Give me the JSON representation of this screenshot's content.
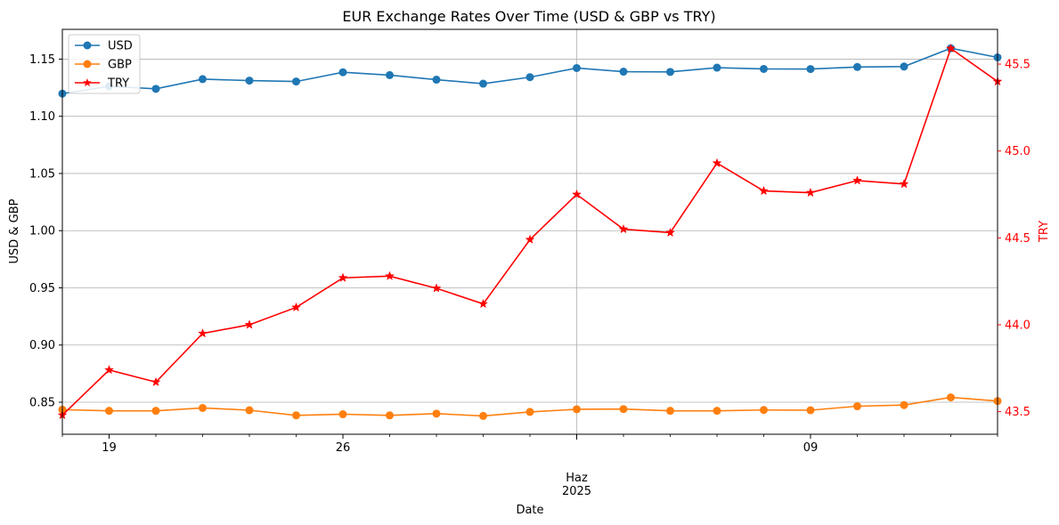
{
  "chart_data": {
    "type": "line",
    "title": "EUR Exchange Rates Over Time (USD & GBP vs TRY)",
    "xlabel": "Date",
    "ylabel": "USD & GBP",
    "y2label": "TRY",
    "x": [
      "2025-05-17",
      "2025-05-19",
      "2025-05-20",
      "2025-05-21",
      "2025-05-22",
      "2025-05-23",
      "2025-05-26",
      "2025-05-27",
      "2025-05-28",
      "2025-05-29",
      "2025-05-30",
      "2025-06-02",
      "2025-06-03",
      "2025-06-04",
      "2025-06-05",
      "2025-06-06",
      "2025-06-09",
      "2025-06-10",
      "2025-06-11",
      "2025-06-12",
      "2025-06-13"
    ],
    "x_positions_days": [
      0,
      1,
      2,
      3,
      4,
      5,
      6,
      7,
      8,
      9,
      10,
      11,
      12,
      13,
      14,
      15,
      16,
      17,
      18,
      19,
      20
    ],
    "xlim_days": [
      0,
      20
    ],
    "x_ticks": [
      {
        "day": 1,
        "label": "19"
      },
      {
        "day": 6,
        "label": "26"
      },
      {
        "day": 16,
        "label": "09"
      }
    ],
    "x_month_label": {
      "day": 11,
      "label": "Haz",
      "year": "2025"
    },
    "ylim": [
      0.822,
      1.176
    ],
    "y_ticks": [
      "0.85",
      "0.90",
      "0.95",
      "1.00",
      "1.05",
      "1.10",
      "1.15"
    ],
    "y2lim": [
      43.37,
      45.7
    ],
    "y2_ticks": [
      "43.5",
      "44.0",
      "44.5",
      "45.0",
      "45.5"
    ],
    "series": [
      {
        "name": "USD",
        "axis": "left",
        "color": "#1f77b4",
        "marker": "circle",
        "values": [
          1.1198,
          1.1262,
          1.124,
          1.1325,
          1.1312,
          1.1304,
          1.1385,
          1.136,
          1.132,
          1.1285,
          1.1342,
          1.1422,
          1.139,
          1.1388,
          1.1425,
          1.1414,
          1.1413,
          1.1431,
          1.1435,
          1.1595,
          1.1515
        ]
      },
      {
        "name": "GBP",
        "axis": "left",
        "color": "#ff7f0e",
        "marker": "circle",
        "values": [
          0.8435,
          0.8425,
          0.8425,
          0.845,
          0.843,
          0.8385,
          0.8395,
          0.8385,
          0.84,
          0.838,
          0.8415,
          0.8438,
          0.844,
          0.8425,
          0.8425,
          0.8432,
          0.843,
          0.8465,
          0.8475,
          0.8542,
          0.851
        ]
      },
      {
        "name": "TRY",
        "axis": "right",
        "color": "#ff0000",
        "marker": "star",
        "values": [
          43.48,
          43.74,
          43.67,
          43.95,
          44.0,
          44.1,
          44.27,
          44.28,
          44.21,
          44.12,
          44.49,
          44.75,
          44.55,
          44.53,
          44.93,
          44.77,
          44.76,
          44.83,
          44.81,
          45.59,
          45.4
        ]
      }
    ],
    "legend_position": "top-left",
    "grid": true
  }
}
